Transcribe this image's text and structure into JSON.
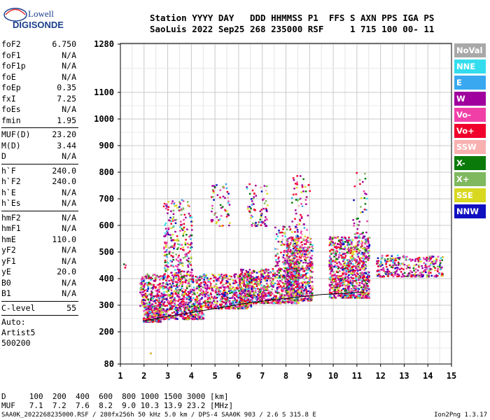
{
  "logo": {
    "line1": "Lowell",
    "line2": "DIGISONDE"
  },
  "header": {
    "labels": "Station YYYY DAY   DDD HHMMSS P1  FFS S AXN PPS IGA PS",
    "values": "SaoLuis 2022 Sep25 268 235000 RSF     1 715 100 00- 11"
  },
  "params": [
    [
      {
        "name": "foF2",
        "value": "6.750"
      },
      {
        "name": "foF1",
        "value": "N/A"
      },
      {
        "name": "foF1p",
        "value": "N/A"
      },
      {
        "name": "foE",
        "value": "N/A"
      },
      {
        "name": "foEp",
        "value": "0.35"
      },
      {
        "name": "fxI",
        "value": "7.25"
      },
      {
        "name": "foEs",
        "value": "N/A"
      },
      {
        "name": "fmin",
        "value": "1.95"
      }
    ],
    [
      {
        "name": "MUF(D)",
        "value": "23.20"
      },
      {
        "name": "M(D)",
        "value": "3.44"
      },
      {
        "name": "D",
        "value": "N/A"
      }
    ],
    [
      {
        "name": "h`F",
        "value": "240.0"
      },
      {
        "name": "h`F2",
        "value": "240.0"
      },
      {
        "name": "h`E",
        "value": "N/A"
      },
      {
        "name": "h`Es",
        "value": "N/A"
      }
    ],
    [
      {
        "name": "hmF2",
        "value": "N/A"
      },
      {
        "name": "hmF1",
        "value": "N/A"
      },
      {
        "name": "hmE",
        "value": "110.0"
      },
      {
        "name": "yF2",
        "value": "N/A"
      },
      {
        "name": "yF1",
        "value": "N/A"
      },
      {
        "name": "yE",
        "value": "20.0"
      },
      {
        "name": "B0",
        "value": "N/A"
      },
      {
        "name": "B1",
        "value": "N/A"
      }
    ],
    [
      {
        "name": "C-level",
        "value": "55"
      }
    ]
  ],
  "auto": {
    "line1": "Auto:",
    "line2": "Artist5",
    "line3": "500200"
  },
  "legend": [
    {
      "label": "NoVal",
      "color": "#a8a8a8"
    },
    {
      "label": "NNE",
      "color": "#33ddee"
    },
    {
      "label": "E",
      "color": "#3aa8f0"
    },
    {
      "label": "W",
      "color": "#a0009e"
    },
    {
      "label": "Vo-",
      "color": "#f040a8"
    },
    {
      "label": "Vo+",
      "color": "#f0002a"
    },
    {
      "label": "SSW",
      "color": "#f8b0b0"
    },
    {
      "label": "X-",
      "color": "#0a7a0a"
    },
    {
      "label": "X+",
      "color": "#80b860"
    },
    {
      "label": "SSE",
      "color": "#d8d820"
    },
    {
      "label": "NNW",
      "color": "#1010c0"
    }
  ],
  "footer": {
    "d_line": "D     100  200  400  600  800 1000 1500 3000 [km]",
    "muf_line": "MUF   7.1  7.2  7.6  8.2  9.0 10.3 13.9 23.2 [MHz]",
    "bottom_left": "SAA0K_2022268235000.RSF / 280fx256h 50 kHz 5.0 km / DPS-4 SAA0K 903 / 2.6 S 315.8 E",
    "bottom_right": "Ion2Png 1.3.17"
  },
  "chart_data": {
    "type": "scatter",
    "x_ticks": [
      1,
      2,
      3,
      4,
      5,
      6,
      7,
      8,
      9,
      10,
      11,
      12,
      13,
      14,
      15
    ],
    "y_ticks": [
      80,
      200,
      300,
      400,
      500,
      600,
      700,
      800,
      900,
      1000,
      1100,
      1280
    ],
    "xlim": [
      1,
      15
    ],
    "ylim": [
      80,
      1280
    ],
    "grid": true,
    "legend_position": "right",
    "trace": [
      [
        1.95,
        240
      ],
      [
        2.5,
        250
      ],
      [
        3.5,
        265
      ],
      [
        4.5,
        280
      ],
      [
        5.5,
        295
      ],
      [
        6.5,
        310
      ],
      [
        7.5,
        320
      ],
      [
        8.5,
        330
      ],
      [
        9.5,
        340
      ],
      [
        10.5,
        345
      ],
      [
        11.3,
        350
      ]
    ],
    "clusters": [
      {
        "x": [
          1.1,
          1.2
        ],
        "y": [
          440,
          460
        ],
        "n": 4
      },
      {
        "x": [
          1.95,
          2.7
        ],
        "y": [
          240,
          300
        ],
        "n": 260
      },
      {
        "x": [
          1.8,
          3.0
        ],
        "y": [
          300,
          420
        ],
        "n": 300
      },
      {
        "x": [
          2.7,
          4.5
        ],
        "y": [
          250,
          290
        ],
        "n": 220
      },
      {
        "x": [
          3.0,
          6.5
        ],
        "y": [
          290,
          420
        ],
        "n": 900
      },
      {
        "x": [
          2.8,
          4.0
        ],
        "y": [
          420,
          700
        ],
        "n": 250
      },
      {
        "x": [
          4.8,
          5.6
        ],
        "y": [
          600,
          760
        ],
        "n": 60
      },
      {
        "x": [
          6.3,
          7.2
        ],
        "y": [
          600,
          760
        ],
        "n": 80
      },
      {
        "x": [
          6.0,
          8.5
        ],
        "y": [
          310,
          440
        ],
        "n": 700
      },
      {
        "x": [
          7.5,
          8.5
        ],
        "y": [
          440,
          600
        ],
        "n": 120
      },
      {
        "x": [
          8.0,
          9.1
        ],
        "y": [
          320,
          560
        ],
        "n": 600
      },
      {
        "x": [
          8.2,
          9.0
        ],
        "y": [
          560,
          800
        ],
        "n": 60
      },
      {
        "x": [
          9.8,
          11.5
        ],
        "y": [
          330,
          560
        ],
        "n": 900
      },
      {
        "x": [
          10.8,
          11.4
        ],
        "y": [
          560,
          820
        ],
        "n": 40
      },
      {
        "x": [
          11.8,
          14.6
        ],
        "y": [
          410,
          490
        ],
        "n": 320
      },
      {
        "x": [
          2.2,
          2.3
        ],
        "y": [
          120,
          125
        ],
        "n": 2
      }
    ]
  }
}
